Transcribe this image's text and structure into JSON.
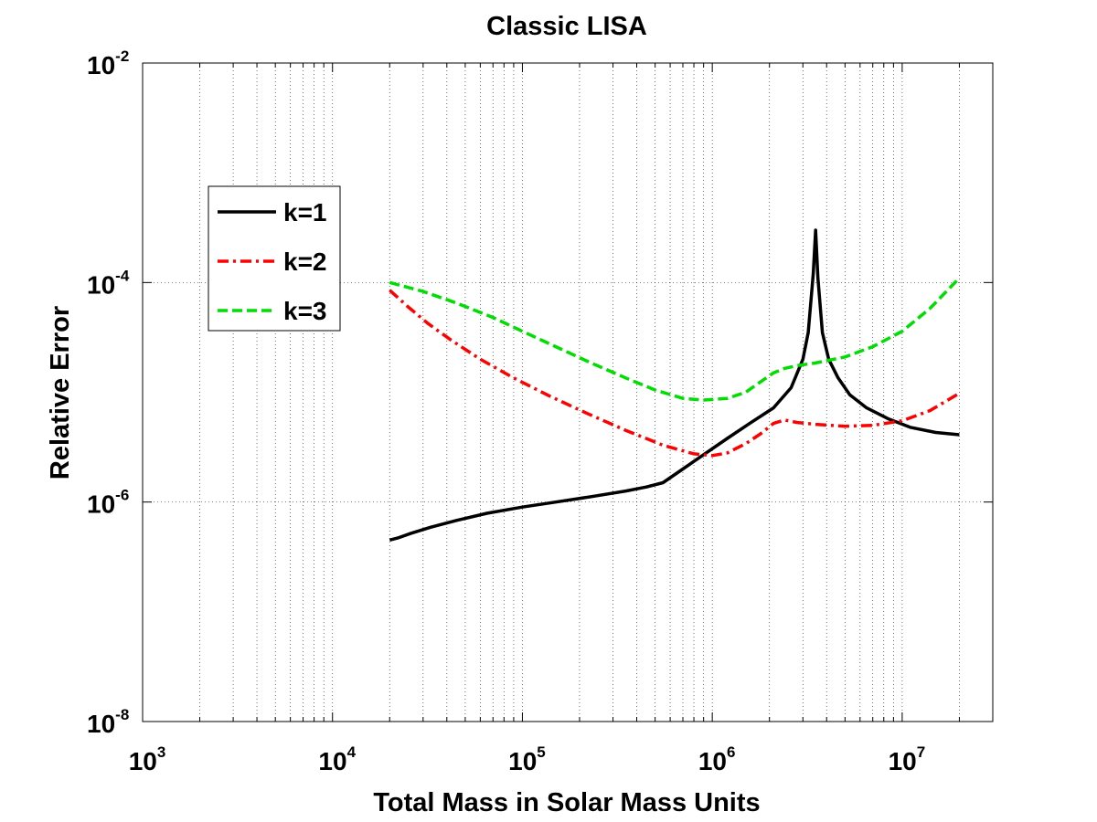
{
  "chart_data": {
    "type": "line",
    "title": "Classic LISA",
    "xlabel": "Total Mass in Solar Mass Units",
    "ylabel": "Relative Error",
    "xscale": "log",
    "yscale": "log",
    "xlim": [
      1000,
      30000000
    ],
    "ylim": [
      1e-08,
      0.01
    ],
    "grid": true,
    "legend_position": "upper-left",
    "x_ticks": [
      {
        "base": "10",
        "exp": "3",
        "value": 1000
      },
      {
        "base": "10",
        "exp": "4",
        "value": 10000
      },
      {
        "base": "10",
        "exp": "5",
        "value": 100000
      },
      {
        "base": "10",
        "exp": "6",
        "value": 1000000
      },
      {
        "base": "10",
        "exp": "7",
        "value": 10000000
      }
    ],
    "y_ticks": [
      {
        "base": "10",
        "exp": "-8",
        "value": 1e-08
      },
      {
        "base": "10",
        "exp": "-6",
        "value": 1e-06
      },
      {
        "base": "10",
        "exp": "-4",
        "value": 0.0001
      },
      {
        "base": "10",
        "exp": "-2",
        "value": 0.01
      }
    ],
    "series": [
      {
        "name": "k=1",
        "color": "#000000",
        "style": "solid",
        "x": [
          20000,
          22000,
          26000,
          33000,
          45000,
          65000,
          100000,
          150000,
          230000,
          350000,
          450000,
          550000,
          700000,
          900000,
          1200000,
          1600000,
          2100000,
          2600000,
          3000000,
          3200000,
          3400000,
          3500000,
          3600000,
          3800000,
          4100000,
          4600000,
          5300000,
          6500000,
          8500000,
          11000000,
          15000000,
          20000000
        ],
        "y": [
          4.5e-07,
          4.7e-07,
          5.2e-07,
          5.9e-07,
          6.8e-07,
          7.9e-07,
          9e-07,
          1e-06,
          1.12e-06,
          1.26e-06,
          1.37e-06,
          1.5e-06,
          2e-06,
          2.7e-06,
          3.8e-06,
          5.3e-06,
          7.2e-06,
          1.1e-05,
          2e-05,
          3.5e-05,
          0.00012,
          0.0003,
          0.00011,
          3.5e-05,
          2e-05,
          1.35e-05,
          9.5e-06,
          7.2e-06,
          5.7e-06,
          4.8e-06,
          4.3e-06,
          4.1e-06
        ]
      },
      {
        "name": "k=2",
        "color": "#ff0000",
        "style": "dashdot",
        "x": [
          20000,
          25000,
          32000,
          42000,
          60000,
          90000,
          140000,
          220000,
          350000,
          550000,
          800000,
          1000000,
          1200000,
          1500000,
          1800000,
          2100000,
          2400000,
          2800000,
          3500000,
          5000000,
          7000000,
          10000000,
          14000000,
          20000000
        ],
        "y": [
          8.5e-05,
          6e-05,
          4.2e-05,
          3e-05,
          2e-05,
          1.35e-05,
          9.2e-06,
          6.4e-06,
          4.5e-06,
          3.3e-06,
          2.75e-06,
          2.65e-06,
          2.8e-06,
          3.4e-06,
          4.2e-06,
          5.2e-06,
          5.6e-06,
          5.3e-06,
          5.1e-06,
          4.9e-06,
          5e-06,
          5.5e-06,
          6.8e-06,
          9.8e-06
        ]
      },
      {
        "name": "k=3",
        "color": "#00dd00",
        "style": "dashed",
        "x": [
          20000,
          30000,
          45000,
          70000,
          100000,
          150000,
          230000,
          350000,
          500000,
          700000,
          900000,
          1200000,
          1500000,
          1800000,
          2100000,
          2400000,
          2800000,
          3500000,
          5000000,
          7000000,
          10000000,
          14000000,
          20000000
        ],
        "y": [
          0.0001,
          8.3e-05,
          6.5e-05,
          4.8e-05,
          3.6e-05,
          2.6e-05,
          1.85e-05,
          1.35e-05,
          1.05e-05,
          8.8e-06,
          8.5e-06,
          8.8e-06,
          1e-05,
          1.25e-05,
          1.5e-05,
          1.65e-05,
          1.75e-05,
          1.85e-05,
          2.1e-05,
          2.6e-05,
          3.6e-05,
          5.8e-05,
          0.00011
        ]
      }
    ]
  }
}
